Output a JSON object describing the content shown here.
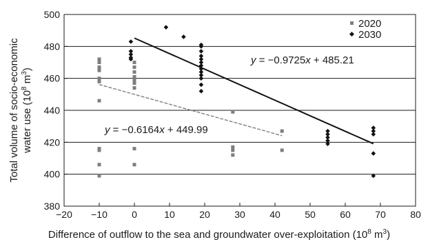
{
  "chart_data": {
    "type": "scatter",
    "xlabel_main": "Difference of outflow to the sea and groundwater over-exploitation (10",
    "xlabel_sup": "8",
    "xlabel_tail": " m",
    "xlabel_sup2": "3",
    "xlabel_end": ")",
    "ylabel_line1": "Total volume of socio-economic",
    "ylabel_line2_main": "water use (10",
    "ylabel_line2_sup": "8",
    "ylabel_line2_tail": " m",
    "ylabel_line2_sup2": "3",
    "ylabel_line2_end": ")",
    "xlim": [
      -20,
      80
    ],
    "ylim": [
      380,
      500
    ],
    "xticks": [
      "−20",
      "−10",
      "0",
      "10",
      "20",
      "30",
      "40",
      "50",
      "60",
      "70",
      "80"
    ],
    "yticks": [
      "380",
      "400",
      "420",
      "440",
      "460",
      "480",
      "500"
    ],
    "xtick_values": [
      -20,
      -10,
      0,
      10,
      20,
      30,
      40,
      50,
      60,
      70,
      80
    ],
    "ytick_values": [
      380,
      400,
      420,
      440,
      460,
      480,
      500
    ],
    "grid": "horizontal",
    "legend_position": "top-right",
    "series": [
      {
        "name": "2020",
        "marker": "square",
        "color": "#7f7f7f",
        "points": [
          [
            -10,
            472
          ],
          [
            -10,
            470
          ],
          [
            -10,
            467
          ],
          [
            -10,
            465
          ],
          [
            -10,
            460
          ],
          [
            -10,
            458
          ],
          [
            -10,
            446
          ],
          [
            -10,
            416
          ],
          [
            -10,
            415
          ],
          [
            -10,
            406
          ],
          [
            -10,
            399
          ],
          [
            0,
            470
          ],
          [
            0,
            467
          ],
          [
            0,
            464
          ],
          [
            0,
            461
          ],
          [
            0,
            459
          ],
          [
            0,
            457
          ],
          [
            0,
            454
          ],
          [
            0,
            416
          ],
          [
            0,
            406
          ],
          [
            28,
            439
          ],
          [
            28,
            417
          ],
          [
            28,
            415
          ],
          [
            28,
            412
          ],
          [
            42,
            427
          ],
          [
            42,
            415
          ]
        ],
        "fit": {
          "label": "y = −0.6164x + 449.99",
          "slope": -0.6164,
          "intercept": 449.99,
          "x_range": [
            -10,
            42
          ],
          "color": "#7f7f7f",
          "dashed": true
        }
      },
      {
        "name": "2030",
        "marker": "diamond",
        "color": "#111111",
        "points": [
          [
            -1,
            483
          ],
          [
            -1,
            477
          ],
          [
            -1,
            475
          ],
          [
            -1,
            473
          ],
          [
            -1,
            472
          ],
          [
            9,
            492
          ],
          [
            14,
            486
          ],
          [
            19,
            481
          ],
          [
            19,
            480
          ],
          [
            19,
            477
          ],
          [
            19,
            474
          ],
          [
            19,
            472
          ],
          [
            19,
            470
          ],
          [
            19,
            468
          ],
          [
            19,
            466
          ],
          [
            19,
            464
          ],
          [
            19,
            462
          ],
          [
            19,
            460
          ],
          [
            19,
            456
          ],
          [
            19,
            452
          ],
          [
            55,
            427
          ],
          [
            55,
            425
          ],
          [
            55,
            423
          ],
          [
            55,
            421
          ],
          [
            55,
            419
          ],
          [
            68,
            429
          ],
          [
            68,
            427
          ],
          [
            68,
            425
          ],
          [
            68,
            413
          ],
          [
            68,
            399
          ]
        ],
        "fit": {
          "label": "y = −0.9725x + 485.21",
          "slope": -0.9725,
          "intercept": 485.21,
          "x_range": [
            0,
            68
          ],
          "color": "#111111",
          "dashed": false
        }
      }
    ]
  }
}
